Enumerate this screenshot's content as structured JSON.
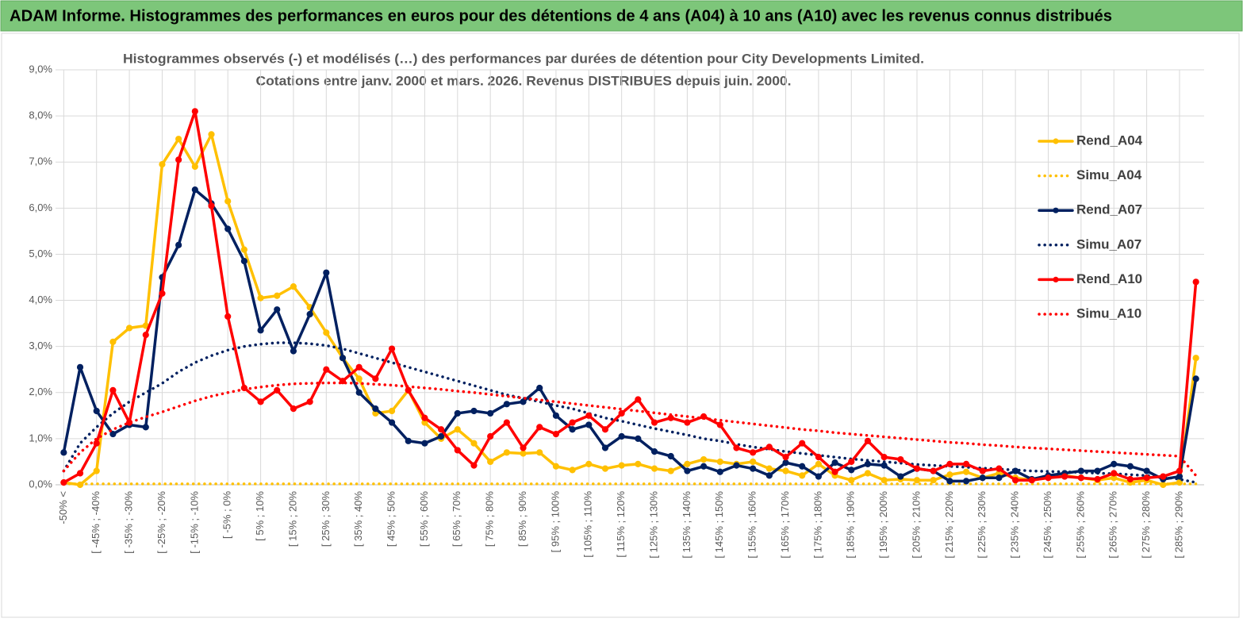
{
  "header": {
    "title": "ADAM Informe. Histogrammes des performances en euros pour des détentions de 4 ans (A04) à 10 ans (A10) avec les revenus connus distribués"
  },
  "chart_data": {
    "type": "line",
    "title": "Histogrammes observés (-) et modélisés (…) des performances par durées de détention pour City Developments Limited.",
    "subtitle": "Cotations entre janv. 2000 et mars. 2026.  Revenus DISTRIBUES depuis juin. 2000.",
    "categories": [
      "-50% <",
      null,
      "[ -45% ; -40%",
      null,
      "[ -35% ; -30%",
      null,
      "[ -25% ; -20%",
      null,
      "[ -15% ; -10%",
      null,
      "[ -5% ; 0%",
      null,
      "[ 5% ; 10%",
      null,
      "[ 15% ; 20%",
      null,
      "[ 25% ; 30%",
      null,
      "[ 35% ; 40%",
      null,
      "[ 45% ; 50%",
      null,
      "[ 55% ; 60%",
      null,
      "[ 65% ; 70%",
      null,
      "[ 75% ; 80%",
      null,
      "[ 85% ; 90%",
      null,
      "[ 95% ; 100%",
      null,
      "[ 105% ; 110%",
      null,
      "[ 115% ; 120%",
      null,
      "[ 125% ; 130%",
      null,
      "[ 135% ; 140%",
      null,
      "[ 145% ; 150%",
      null,
      "[ 155% ; 160%",
      null,
      "[ 165% ; 170%",
      null,
      "[ 175% ; 180%",
      null,
      "[ 185% ; 190%",
      null,
      "[ 195% ; 200%",
      null,
      "[ 205% ; 210%",
      null,
      "[ 215% ; 220%",
      null,
      "[ 225% ; 230%",
      null,
      "[ 235% ; 240%",
      null,
      "[ 245% ; 250%",
      null,
      "[ 255% ; 260%",
      null,
      "[ 265% ; 270%",
      null,
      "[ 275% ; 280%",
      null,
      "[ 285% ; 290%",
      null
    ],
    "series": [
      {
        "name": "Rend_A04",
        "color": "#ffc000",
        "style": "solid",
        "markers": true,
        "values": [
          0.05,
          0.0,
          0.3,
          3.1,
          3.4,
          3.45,
          6.95,
          7.5,
          6.9,
          7.6,
          6.15,
          5.1,
          4.05,
          4.1,
          4.3,
          3.85,
          3.3,
          2.75,
          2.3,
          1.55,
          1.6,
          2.05,
          1.35,
          1.0,
          1.2,
          0.9,
          0.5,
          0.7,
          0.68,
          0.7,
          0.4,
          0.32,
          0.45,
          0.35,
          0.42,
          0.45,
          0.35,
          0.3,
          0.45,
          0.55,
          0.5,
          0.45,
          0.5,
          0.35,
          0.3,
          0.2,
          0.45,
          0.2,
          0.1,
          0.25,
          0.1,
          0.12,
          0.1,
          0.1,
          0.22,
          0.28,
          0.15,
          0.25,
          0.15,
          0.1,
          0.15,
          0.2,
          0.15,
          0.1,
          0.15,
          0.05,
          0.1,
          0.0,
          0.05,
          2.75
        ]
      },
      {
        "name": "Simu_A04",
        "color": "#ffc000",
        "style": "dotted",
        "markers": false,
        "values": [
          0.02,
          0.02,
          0.02,
          0.02,
          0.02,
          0.02,
          0.02,
          0.02,
          0.02,
          0.02,
          0.02,
          0.02,
          0.02,
          0.02,
          0.02,
          0.02,
          0.02,
          0.02,
          0.02,
          0.02,
          0.02,
          0.02,
          0.02,
          0.02,
          0.02,
          0.02,
          0.02,
          0.02,
          0.02,
          0.02,
          0.02,
          0.02,
          0.02,
          0.02,
          0.02,
          0.02,
          0.02,
          0.02,
          0.02,
          0.02,
          0.02,
          0.02,
          0.02,
          0.02,
          0.02,
          0.02,
          0.02,
          0.02,
          0.02,
          0.02,
          0.02,
          0.02,
          0.02,
          0.02,
          0.02,
          0.02,
          0.02,
          0.02,
          0.02,
          0.02,
          0.02,
          0.02,
          0.02,
          0.02,
          0.02,
          0.02,
          0.02,
          0.02,
          0.02,
          0.02
        ]
      },
      {
        "name": "Rend_A07",
        "color": "#002060",
        "style": "solid",
        "markers": true,
        "values": [
          0.7,
          2.55,
          1.6,
          1.1,
          1.3,
          1.25,
          4.5,
          5.2,
          6.4,
          6.1,
          5.55,
          4.85,
          3.35,
          3.8,
          2.9,
          3.7,
          4.6,
          2.75,
          2.0,
          1.65,
          1.35,
          0.95,
          0.9,
          1.05,
          1.55,
          1.6,
          1.55,
          1.75,
          1.8,
          2.1,
          1.5,
          1.2,
          1.3,
          0.8,
          1.05,
          1.0,
          0.72,
          0.62,
          0.3,
          0.4,
          0.28,
          0.42,
          0.35,
          0.2,
          0.48,
          0.4,
          0.18,
          0.48,
          0.32,
          0.45,
          0.42,
          0.18,
          0.35,
          0.3,
          0.08,
          0.08,
          0.15,
          0.15,
          0.3,
          0.12,
          0.2,
          0.25,
          0.3,
          0.3,
          0.45,
          0.4,
          0.3,
          0.12,
          0.18,
          2.3
        ]
      },
      {
        "name": "Simu_A07",
        "color": "#002060",
        "style": "dotted",
        "markers": false,
        "values": [
          0.3,
          0.9,
          1.25,
          1.55,
          1.8,
          2.0,
          2.2,
          2.45,
          2.65,
          2.8,
          2.92,
          3.0,
          3.05,
          3.08,
          3.08,
          3.06,
          3.02,
          2.95,
          2.85,
          2.75,
          2.65,
          2.55,
          2.45,
          2.35,
          2.25,
          2.15,
          2.05,
          1.95,
          1.88,
          1.8,
          1.72,
          1.65,
          1.55,
          1.45,
          1.38,
          1.3,
          1.22,
          1.15,
          1.08,
          1.0,
          0.95,
          0.88,
          0.82,
          0.77,
          0.72,
          0.68,
          0.64,
          0.6,
          0.56,
          0.53,
          0.5,
          0.47,
          0.44,
          0.42,
          0.4,
          0.38,
          0.36,
          0.34,
          0.32,
          0.3,
          0.29,
          0.28,
          0.27,
          0.25,
          0.24,
          0.22,
          0.2,
          0.17,
          0.12,
          0.05
        ]
      },
      {
        "name": "Rend_A10",
        "color": "#ff0000",
        "style": "solid",
        "markers": true,
        "values": [
          0.05,
          0.25,
          0.9,
          2.05,
          1.35,
          3.25,
          4.15,
          7.05,
          8.1,
          6.05,
          3.65,
          2.1,
          1.8,
          2.05,
          1.65,
          1.8,
          2.5,
          2.25,
          2.55,
          2.3,
          2.95,
          2.05,
          1.45,
          1.2,
          0.75,
          0.42,
          1.05,
          1.35,
          0.8,
          1.25,
          1.1,
          1.35,
          1.5,
          1.2,
          1.55,
          1.85,
          1.35,
          1.45,
          1.35,
          1.48,
          1.3,
          0.8,
          0.7,
          0.82,
          0.6,
          0.9,
          0.6,
          0.28,
          0.5,
          0.95,
          0.6,
          0.55,
          0.35,
          0.3,
          0.45,
          0.45,
          0.3,
          0.35,
          0.1,
          0.1,
          0.15,
          0.18,
          0.15,
          0.12,
          0.25,
          0.12,
          0.15,
          0.18,
          0.3,
          4.4
        ]
      },
      {
        "name": "Simu_A10",
        "color": "#ff0000",
        "style": "dotted",
        "markers": false,
        "values": [
          0.3,
          0.7,
          1.0,
          1.2,
          1.35,
          1.47,
          1.58,
          1.7,
          1.82,
          1.92,
          2.0,
          2.07,
          2.12,
          2.16,
          2.19,
          2.2,
          2.21,
          2.21,
          2.2,
          2.18,
          2.16,
          2.13,
          2.1,
          2.07,
          2.03,
          2.0,
          1.96,
          1.92,
          1.88,
          1.84,
          1.8,
          1.76,
          1.72,
          1.68,
          1.64,
          1.6,
          1.56,
          1.52,
          1.48,
          1.44,
          1.4,
          1.36,
          1.32,
          1.28,
          1.24,
          1.2,
          1.17,
          1.13,
          1.1,
          1.07,
          1.04,
          1.01,
          0.98,
          0.95,
          0.92,
          0.9,
          0.87,
          0.85,
          0.82,
          0.8,
          0.78,
          0.76,
          0.74,
          0.72,
          0.7,
          0.68,
          0.66,
          0.64,
          0.62,
          0.2
        ]
      }
    ],
    "ylim": [
      0,
      9
    ],
    "yticks": [
      {
        "value": 0,
        "label": "0,0%"
      },
      {
        "value": 1,
        "label": "1,0%"
      },
      {
        "value": 2,
        "label": "2,0%"
      },
      {
        "value": 3,
        "label": "3,0%"
      },
      {
        "value": 4,
        "label": "4,0%"
      },
      {
        "value": 5,
        "label": "5,0%"
      },
      {
        "value": 6,
        "label": "6,0%"
      },
      {
        "value": 7,
        "label": "7,0%"
      },
      {
        "value": 8,
        "label": "8,0%"
      },
      {
        "value": 9,
        "label": "9,0%"
      }
    ],
    "grid": true,
    "legend": "right"
  }
}
